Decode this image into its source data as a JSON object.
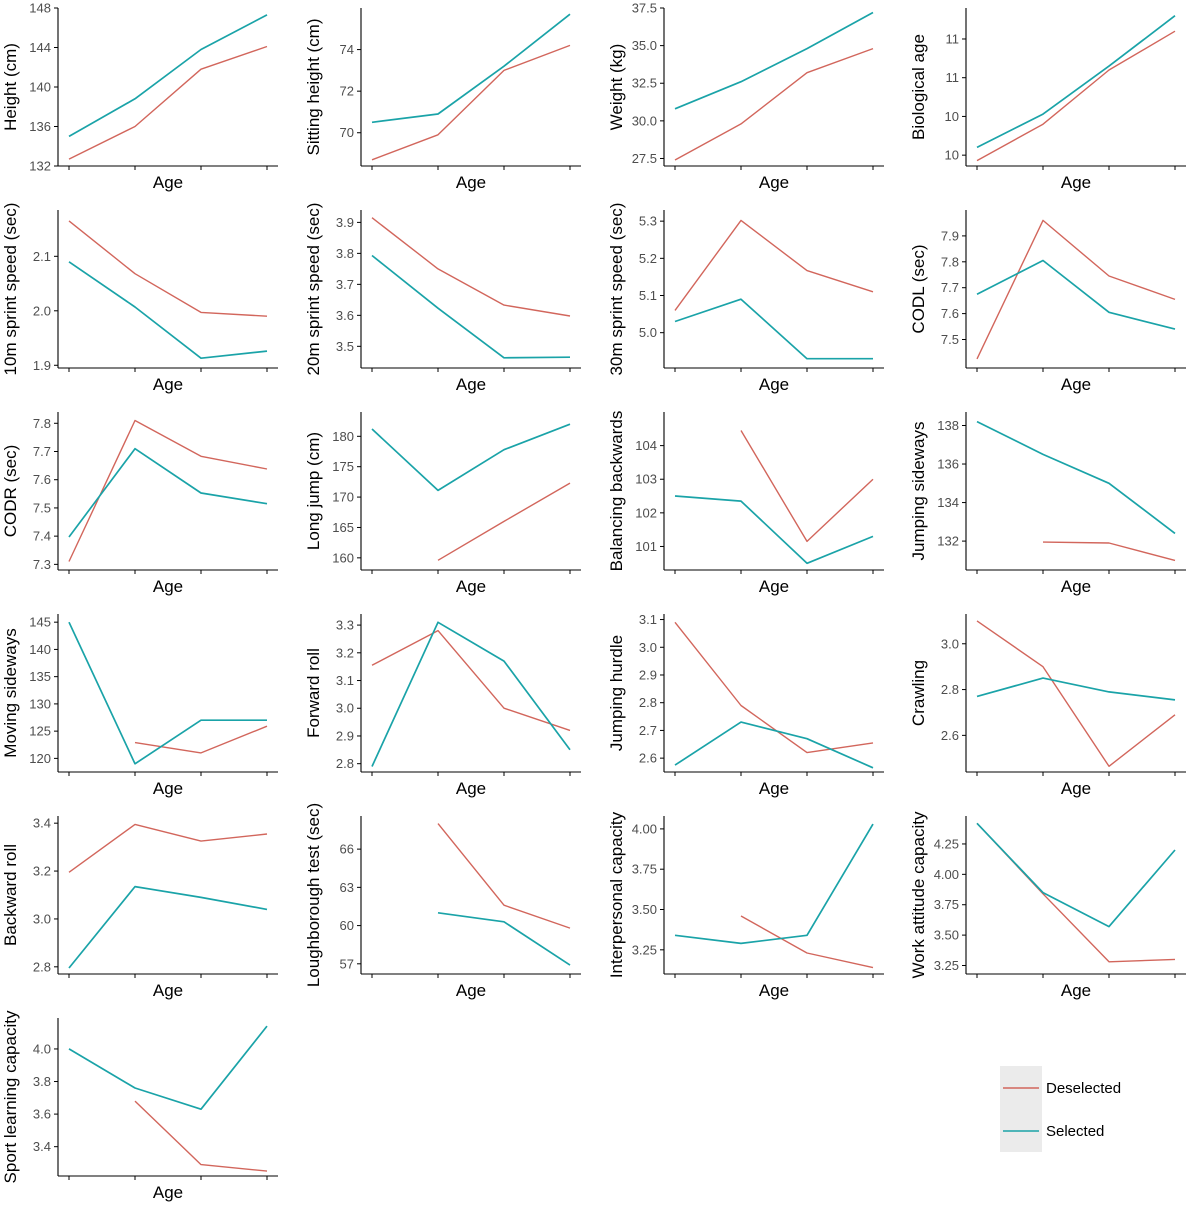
{
  "colors": {
    "deselected": "#d2665c",
    "selected": "#1aa3a8",
    "axis": "#000000",
    "legend_bg": "#ebebeb"
  },
  "legend": {
    "position": "bottom-right",
    "items": [
      {
        "key": "deselected",
        "label": "Deselected"
      },
      {
        "key": "selected",
        "label": "Selected"
      }
    ]
  },
  "chart_data": [
    {
      "type": "line",
      "xlabel": "Age",
      "ylabel": "Height (cm)",
      "ylim": [
        132,
        148
      ],
      "yticks": [
        132,
        136,
        140,
        144,
        148
      ],
      "series": [
        {
          "name": "Deselected",
          "values": [
            132.7,
            136.0,
            141.8,
            144.1
          ]
        },
        {
          "name": "Selected",
          "values": [
            135.0,
            138.8,
            143.8,
            147.3
          ]
        }
      ]
    },
    {
      "type": "line",
      "xlabel": "Age",
      "ylabel": "Sitting height (cm)",
      "ylim": [
        68.4,
        76.0
      ],
      "yticks": [
        70,
        72,
        74
      ],
      "series": [
        {
          "name": "Deselected",
          "values": [
            68.7,
            69.9,
            73.0,
            74.2
          ]
        },
        {
          "name": "Selected",
          "values": [
            70.5,
            70.9,
            73.2,
            75.7
          ]
        }
      ]
    },
    {
      "type": "line",
      "xlabel": "Age",
      "ylabel": "Weight (kg)",
      "ylim": [
        27.0,
        37.5
      ],
      "yticks": [
        27.5,
        30.0,
        32.5,
        35.0,
        37.5
      ],
      "series": [
        {
          "name": "Deselected",
          "values": [
            27.4,
            29.8,
            33.2,
            34.8
          ]
        },
        {
          "name": "Selected",
          "values": [
            30.8,
            32.6,
            34.8,
            37.2
          ]
        }
      ]
    },
    {
      "type": "line",
      "xlabel": "Age",
      "ylabel": "Biological age",
      "ylim": [
        9.36,
        11.4
      ],
      "yticks": [
        9.5,
        10.0,
        10.5,
        11.0
      ],
      "series": [
        {
          "name": "Deselected",
          "values": [
            9.43,
            9.9,
            10.6,
            11.1
          ]
        },
        {
          "name": "Selected",
          "values": [
            9.6,
            10.03,
            10.65,
            11.3
          ]
        }
      ]
    },
    {
      "type": "line",
      "xlabel": "Age",
      "ylabel": "10m sprint speed (sec)",
      "ylim": [
        1.895,
        2.185
      ],
      "yticks": [
        1.9,
        2.0,
        2.1
      ],
      "series": [
        {
          "name": "Deselected",
          "values": [
            2.165,
            2.068,
            1.997,
            1.99
          ]
        },
        {
          "name": "Selected",
          "values": [
            2.09,
            2.007,
            1.913,
            1.926
          ]
        }
      ]
    },
    {
      "type": "line",
      "xlabel": "Age",
      "ylabel": "20m sprint speed (sec)",
      "ylim": [
        3.43,
        3.94
      ],
      "yticks": [
        3.5,
        3.6,
        3.7,
        3.8,
        3.9
      ],
      "series": [
        {
          "name": "Deselected",
          "values": [
            3.915,
            3.75,
            3.633,
            3.598
          ]
        },
        {
          "name": "Selected",
          "values": [
            3.793,
            3.623,
            3.463,
            3.465
          ]
        }
      ]
    },
    {
      "type": "line",
      "xlabel": "Age",
      "ylabel": "30m sprint speed (sec)",
      "ylim": [
        4.905,
        5.33
      ],
      "yticks": [
        5.0,
        5.1,
        5.2,
        5.3
      ],
      "series": [
        {
          "name": "Deselected",
          "values": [
            5.06,
            5.302,
            5.167,
            5.11
          ]
        },
        {
          "name": "Selected",
          "values": [
            5.03,
            5.09,
            4.93,
            4.93
          ]
        }
      ]
    },
    {
      "type": "line",
      "xlabel": "Age",
      "ylabel": "CODL (sec)",
      "ylim": [
        7.39,
        8.0
      ],
      "yticks": [
        7.5,
        7.6,
        7.7,
        7.8,
        7.9
      ],
      "series": [
        {
          "name": "Deselected",
          "values": [
            7.425,
            7.96,
            7.745,
            7.655
          ]
        },
        {
          "name": "Selected",
          "values": [
            7.675,
            7.805,
            7.605,
            7.54
          ]
        }
      ]
    },
    {
      "type": "line",
      "xlabel": "Age",
      "ylabel": "CODR (sec)",
      "ylim": [
        7.28,
        7.84
      ],
      "yticks": [
        7.3,
        7.4,
        7.5,
        7.6,
        7.7,
        7.8
      ],
      "series": [
        {
          "name": "Deselected",
          "values": [
            7.31,
            7.81,
            7.683,
            7.638
          ]
        },
        {
          "name": "Selected",
          "values": [
            7.397,
            7.71,
            7.553,
            7.515
          ]
        }
      ]
    },
    {
      "type": "line",
      "xlabel": "Age",
      "ylabel": "Long jump (cm)",
      "ylim": [
        158,
        184
      ],
      "yticks": [
        160,
        165,
        170,
        175,
        180
      ],
      "series": [
        {
          "name": "Deselected",
          "values": [
            null,
            159.6,
            166.0,
            172.3
          ]
        },
        {
          "name": "Selected",
          "values": [
            181.2,
            171.1,
            177.8,
            182.0
          ]
        }
      ]
    },
    {
      "type": "line",
      "xlabel": "Age",
      "ylabel": "Balancing backwards",
      "ylim": [
        100.3,
        105.0
      ],
      "yticks": [
        101,
        102,
        103,
        104
      ],
      "series": [
        {
          "name": "Deselected",
          "values": [
            null,
            104.45,
            101.15,
            103.0
          ]
        },
        {
          "name": "Selected",
          "values": [
            102.5,
            102.35,
            100.5,
            101.3
          ]
        }
      ]
    },
    {
      "type": "line",
      "xlabel": "Age",
      "ylabel": "Jumping sideways",
      "ylim": [
        130.5,
        138.7
      ],
      "yticks": [
        132,
        134,
        136,
        138
      ],
      "series": [
        {
          "name": "Deselected",
          "values": [
            null,
            131.95,
            131.9,
            131.0
          ]
        },
        {
          "name": "Selected",
          "values": [
            138.2,
            136.5,
            135.0,
            132.4
          ]
        }
      ]
    },
    {
      "type": "line",
      "xlabel": "Age",
      "ylabel": "Moving sideways",
      "ylim": [
        117.5,
        146.5
      ],
      "yticks": [
        120,
        125,
        130,
        135,
        140,
        145
      ],
      "series": [
        {
          "name": "Deselected",
          "values": [
            null,
            122.9,
            121.0,
            125.9
          ]
        },
        {
          "name": "Selected",
          "values": [
            145.0,
            119.0,
            127.0,
            127.0
          ]
        }
      ]
    },
    {
      "type": "line",
      "xlabel": "Age",
      "ylabel": "Forward roll",
      "ylim": [
        2.77,
        3.34
      ],
      "yticks": [
        2.8,
        2.9,
        3.0,
        3.1,
        3.2,
        3.3
      ],
      "series": [
        {
          "name": "Deselected",
          "values": [
            3.155,
            3.28,
            3.0,
            2.92
          ]
        },
        {
          "name": "Selected",
          "values": [
            2.79,
            3.31,
            3.17,
            2.85
          ]
        }
      ]
    },
    {
      "type": "line",
      "xlabel": "Age",
      "ylabel": "Jumping hurdle",
      "ylim": [
        2.55,
        3.12
      ],
      "yticks": [
        2.6,
        2.7,
        2.8,
        2.9,
        3.0,
        3.1
      ],
      "series": [
        {
          "name": "Deselected",
          "values": [
            3.09,
            2.79,
            2.62,
            2.655
          ]
        },
        {
          "name": "Selected",
          "values": [
            2.575,
            2.73,
            2.67,
            2.565
          ]
        }
      ]
    },
    {
      "type": "line",
      "xlabel": "Age",
      "ylabel": "Crawling",
      "ylim": [
        2.44,
        3.13
      ],
      "yticks": [
        2.6,
        2.8,
        3.0
      ],
      "series": [
        {
          "name": "Deselected",
          "values": [
            3.1,
            2.9,
            2.465,
            2.69
          ]
        },
        {
          "name": "Selected",
          "values": [
            2.77,
            2.85,
            2.79,
            2.755
          ]
        }
      ]
    },
    {
      "type": "line",
      "xlabel": "Age",
      "ylabel": "Backward roll",
      "ylim": [
        2.77,
        3.43
      ],
      "yticks": [
        2.8,
        3.0,
        3.2,
        3.4
      ],
      "series": [
        {
          "name": "Deselected",
          "values": [
            3.195,
            3.395,
            3.325,
            3.355
          ]
        },
        {
          "name": "Selected",
          "values": [
            2.795,
            3.135,
            3.09,
            3.04
          ]
        }
      ]
    },
    {
      "type": "line",
      "xlabel": "Age",
      "ylabel": "Loughborough test (sec)",
      "ylim": [
        56.2,
        68.6
      ],
      "yticks": [
        57,
        60,
        63,
        66
      ],
      "series": [
        {
          "name": "Deselected",
          "values": [
            null,
            68.0,
            61.6,
            59.8
          ]
        },
        {
          "name": "Selected",
          "values": [
            null,
            61.0,
            60.3,
            56.9
          ]
        }
      ]
    },
    {
      "type": "line",
      "xlabel": "Age",
      "ylabel": "Interpersonal capacity",
      "ylim": [
        3.1,
        4.08
      ],
      "yticks": [
        3.25,
        3.5,
        3.75,
        4.0
      ],
      "series": [
        {
          "name": "Deselected",
          "values": [
            null,
            3.46,
            3.23,
            3.14
          ]
        },
        {
          "name": "Selected",
          "values": [
            3.34,
            3.29,
            3.34,
            4.03
          ]
        }
      ]
    },
    {
      "type": "line",
      "xlabel": "Age",
      "ylabel": "Work attitude capacity",
      "ylim": [
        3.18,
        4.48
      ],
      "yticks": [
        3.25,
        3.5,
        3.75,
        4.0,
        4.25
      ],
      "series": [
        {
          "name": "Deselected",
          "values": [
            4.42,
            3.84,
            3.28,
            3.3
          ]
        },
        {
          "name": "Selected",
          "values": [
            4.42,
            3.85,
            3.57,
            4.2
          ]
        }
      ]
    },
    {
      "type": "line",
      "xlabel": "Age",
      "ylabel": "Sport learning capacity",
      "ylim": [
        3.22,
        4.19
      ],
      "yticks": [
        3.4,
        3.6,
        3.8,
        4.0
      ],
      "series": [
        {
          "name": "Deselected",
          "values": [
            null,
            3.68,
            3.29,
            3.25
          ]
        },
        {
          "name": "Selected",
          "values": [
            4.0,
            3.76,
            3.63,
            4.14
          ]
        }
      ]
    }
  ]
}
